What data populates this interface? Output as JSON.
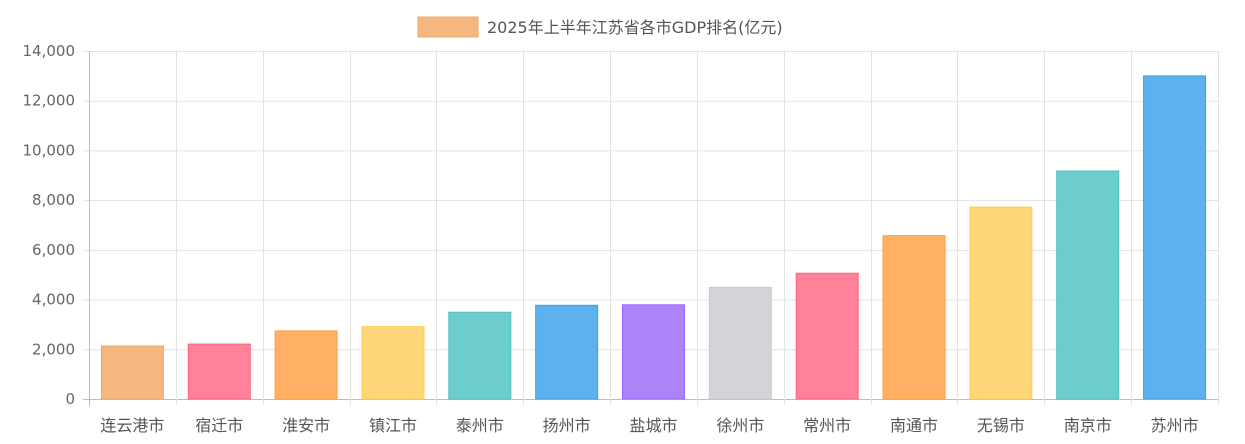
{
  "chart_data": {
    "type": "bar",
    "title": "",
    "xlabel": "",
    "ylabel": "",
    "legend": {
      "label": "2025年上半年江苏省各市GDP排名(亿元)",
      "color": "#f5b77f",
      "placement": "top-center"
    },
    "ylim": [
      0,
      14000
    ],
    "yticks": [
      0,
      2000,
      4000,
      6000,
      8000,
      10000,
      12000,
      14000
    ],
    "ytick_labels": [
      "0",
      "2,000",
      "4,000",
      "6,000",
      "8,000",
      "10,000",
      "12,000",
      "14,000"
    ],
    "grid": true,
    "categories": [
      "连云港市",
      "宿迁市",
      "淮安市",
      "镇江市",
      "泰州市",
      "扬州市",
      "盐城市",
      "徐州市",
      "常州市",
      "南通市",
      "无锡市",
      "南京市",
      "苏州市"
    ],
    "values": [
      2130,
      2210,
      2740,
      2910,
      3490,
      3770,
      3790,
      4490,
      5060,
      6570,
      7720,
      9170,
      13000
    ],
    "colors": [
      "#f5b77f",
      "#ff8299",
      "#ffb064",
      "#ffd678",
      "#6dcdcd",
      "#5db1ee",
      "#ac84f8",
      "#d3d4d8",
      "#ff8299",
      "#ffb064",
      "#ffd678",
      "#6dcdcd",
      "#5db1ee"
    ],
    "border_colors": [
      "#f0a865",
      "#ff6384",
      "#ff9f40",
      "#ffcd56",
      "#4bc0c0",
      "#36a2eb",
      "#9966ff",
      "#c9cbcf",
      "#ff6384",
      "#ff9f40",
      "#ffcd56",
      "#4bc0c0",
      "#36a2eb"
    ]
  }
}
